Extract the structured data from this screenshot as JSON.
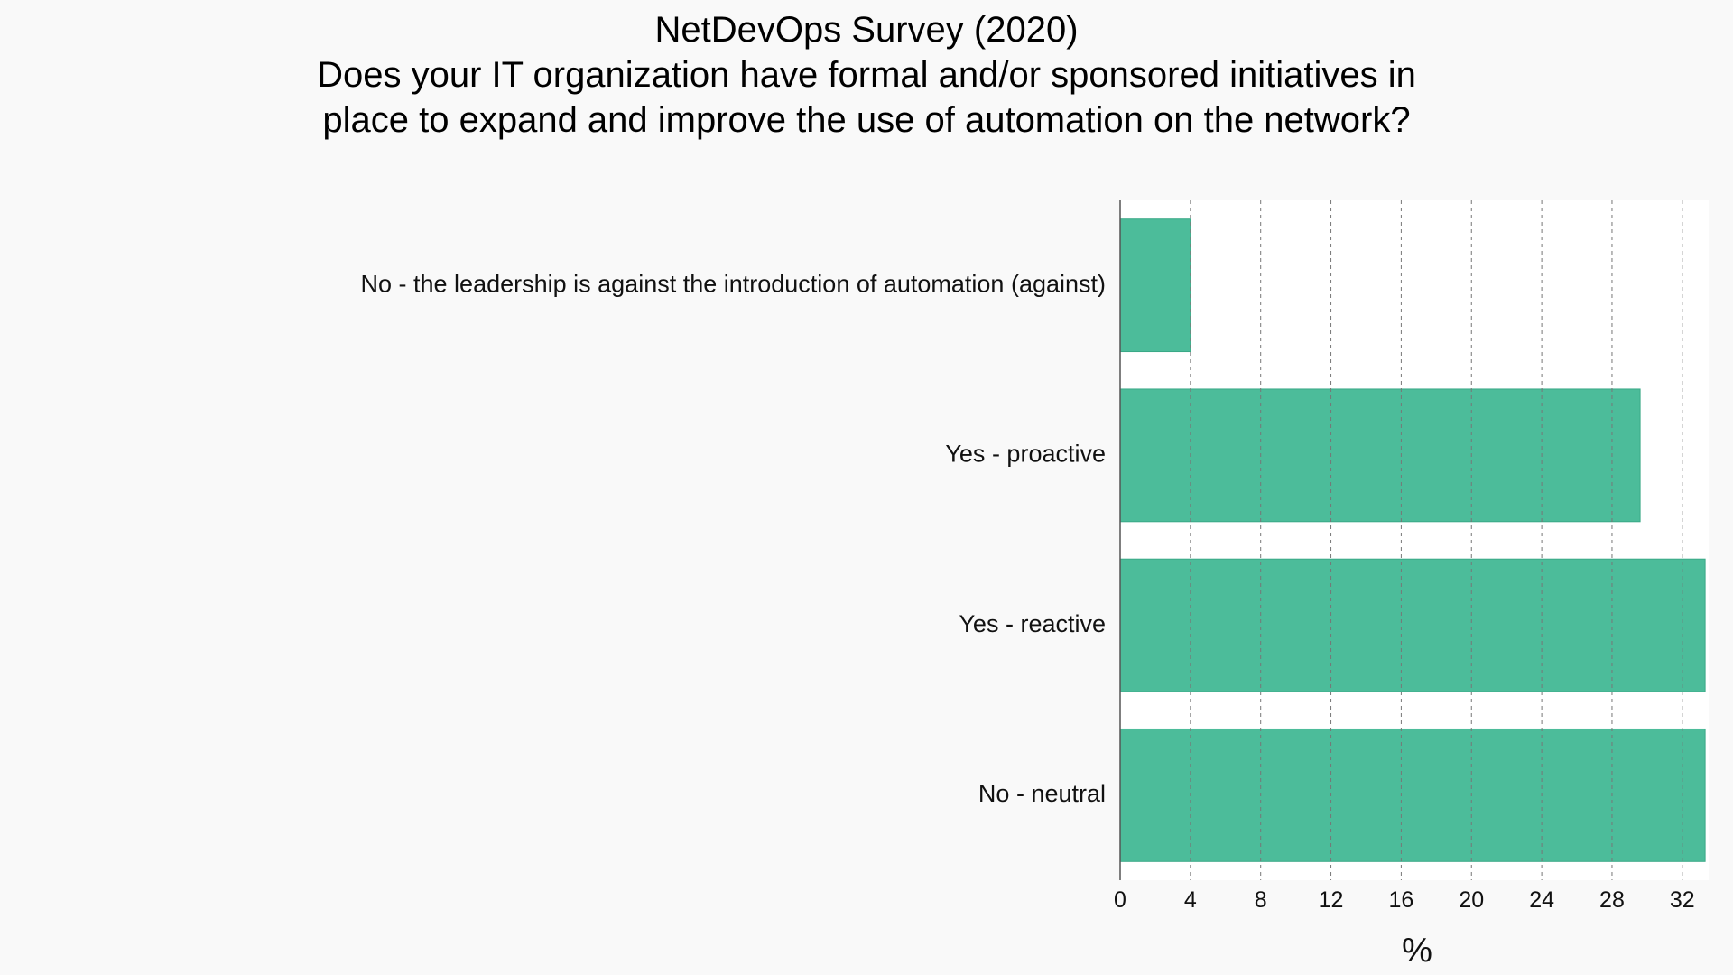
{
  "chart_data": {
    "type": "bar",
    "orientation": "horizontal",
    "title_lines": [
      "NetDevOps Survey (2020)",
      "Does your IT organization have formal and/or sponsored initiatives in",
      "place to expand and improve the use of automation on the network?"
    ],
    "categories": [
      "No - the leadership is against the introduction of automation (against)",
      "Yes - proactive",
      "Yes - reactive",
      "No - neutral"
    ],
    "values": [
      4.0,
      29.6,
      33.3,
      33.3
    ],
    "xlabel": "%",
    "ylabel": "",
    "xlim": [
      0,
      33.5
    ],
    "xticks": [
      "0",
      "4",
      "8",
      "12",
      "16",
      "20",
      "24",
      "28",
      "32"
    ],
    "grid": "vertical-dashed",
    "legend": "none",
    "colors": {
      "bar": "#4cbc9a",
      "bar_edge": "#3aa886",
      "grid": "#777777",
      "axis": "#555555",
      "plot_bg": "#ffffff",
      "page_bg": "#f9f9f9"
    }
  }
}
